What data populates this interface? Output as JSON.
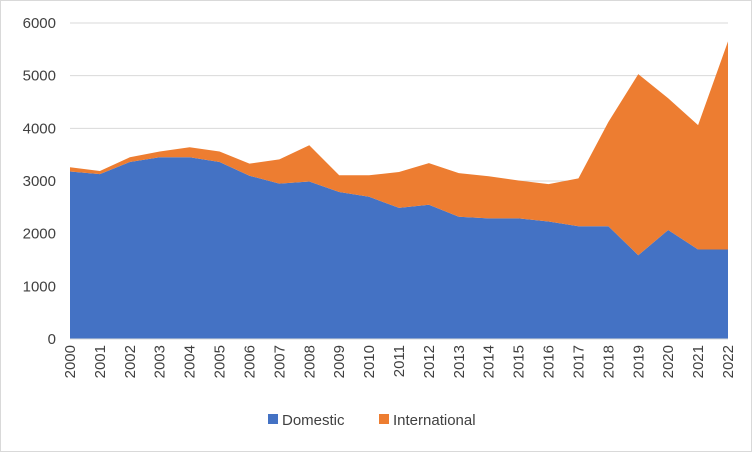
{
  "chart_data": {
    "type": "area",
    "stacked": true,
    "title": "",
    "xlabel": "",
    "ylabel": "",
    "ylim": [
      0,
      6000
    ],
    "yticks": [
      0,
      1000,
      2000,
      3000,
      4000,
      5000,
      6000
    ],
    "grid": true,
    "legend_position": "bottom",
    "categories": [
      "2000",
      "2001",
      "2002",
      "2003",
      "2004",
      "2005",
      "2006",
      "2007",
      "2008",
      "2009",
      "2010",
      "2011",
      "2012",
      "2013",
      "2014",
      "2015",
      "2016",
      "2017",
      "2018",
      "2019",
      "2020",
      "2021",
      "2022"
    ],
    "series": [
      {
        "name": "Domestic",
        "color": "#4472c4",
        "values": [
          3180,
          3130,
          3360,
          3450,
          3450,
          3360,
          3100,
          2950,
          2990,
          2790,
          2700,
          2490,
          2550,
          2320,
          2290,
          2290,
          2230,
          2140,
          2140,
          1590,
          2070,
          1700,
          1700
        ]
      },
      {
        "name": "International",
        "color": "#ed7d31",
        "values": [
          80,
          60,
          90,
          110,
          190,
          200,
          230,
          460,
          690,
          320,
          410,
          680,
          790,
          830,
          800,
          720,
          710,
          910,
          1980,
          3440,
          2500,
          2360,
          3950
        ]
      }
    ]
  }
}
